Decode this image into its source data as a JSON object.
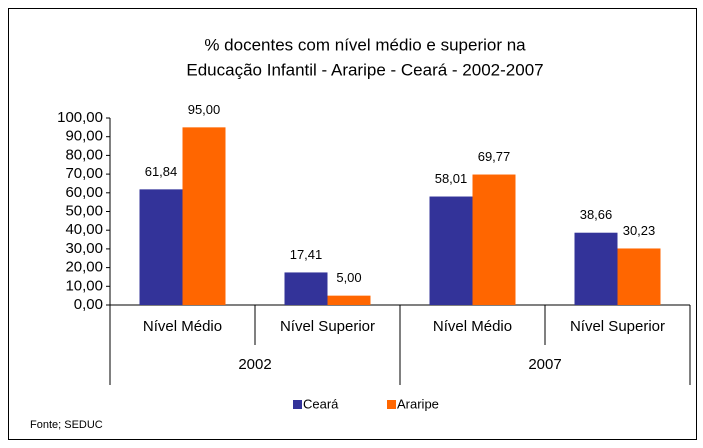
{
  "chart_data": {
    "type": "bar",
    "title": [
      "% docentes com nível médio e superior na",
      "Educação Infantil - Araripe -  Ceará - 2002-2007"
    ],
    "categories": [
      "Nível Médio",
      "Nível Superior",
      "Nível Médio",
      "Nível Superior"
    ],
    "category_groups": [
      "2002",
      "2007"
    ],
    "series": [
      {
        "name": "Ceará",
        "color": "#333399",
        "values": [
          61.84,
          17.41,
          58.01,
          38.66
        ],
        "value_labels": [
          "61,84",
          "17,41",
          "58,01",
          "38,66"
        ]
      },
      {
        "name": "Araripe",
        "color": "#ff6600",
        "values": [
          95,
          5,
          69.77,
          30.23
        ],
        "value_labels": [
          "95,00",
          "5,00",
          "69,77",
          "30,23"
        ]
      }
    ],
    "ylim": [
      0,
      100
    ],
    "yticks": [
      {
        "value": 0,
        "label": "0,00"
      },
      {
        "value": 10,
        "label": "10,00"
      },
      {
        "value": 20,
        "label": "20,00"
      },
      {
        "value": 30,
        "label": "30,00"
      },
      {
        "value": 40,
        "label": "40,00"
      },
      {
        "value": 50,
        "label": "50,00"
      },
      {
        "value": 60,
        "label": "60,00"
      },
      {
        "value": 70,
        "label": "70,00"
      },
      {
        "value": 80,
        "label": "80,00"
      },
      {
        "value": 90,
        "label": "90,00"
      },
      {
        "value": 100,
        "label": "100,00"
      }
    ],
    "grid": false,
    "legend": "bottom",
    "source": "Fonte; SEDUC"
  }
}
